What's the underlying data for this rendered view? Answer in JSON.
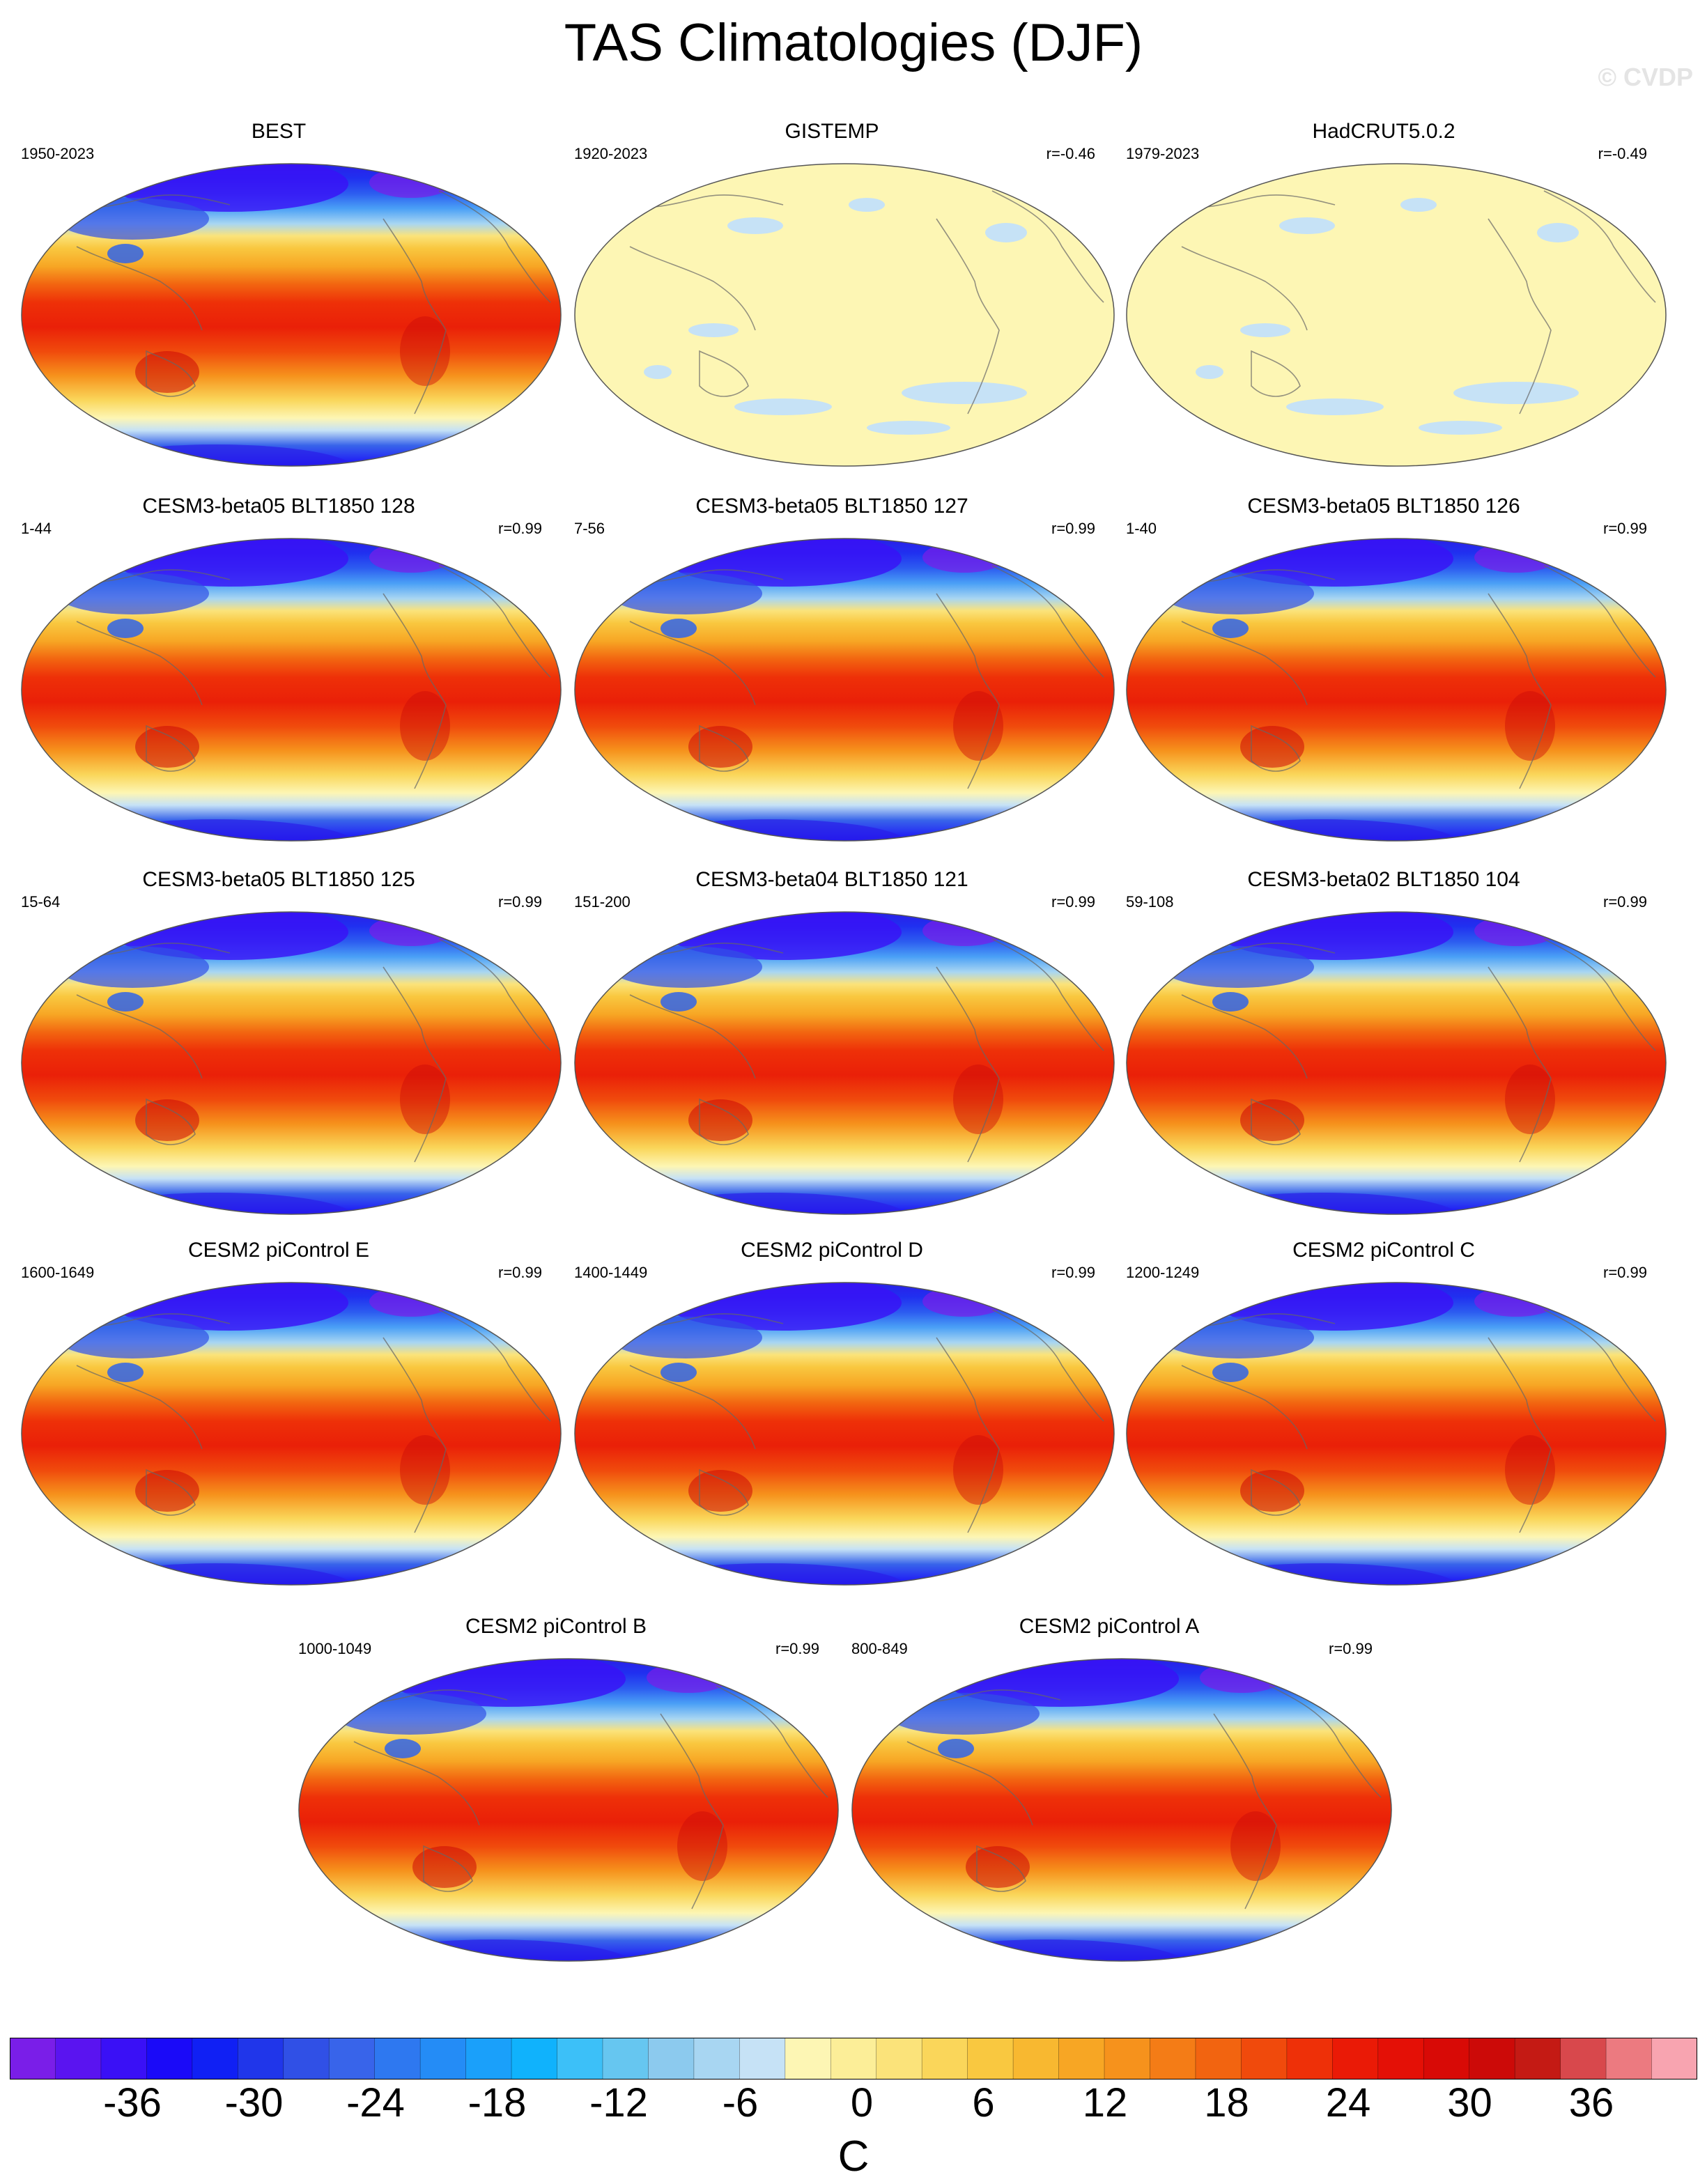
{
  "title": "TAS Climatologies (DJF)",
  "watermark": "© CVDP",
  "panels": [
    {
      "title": "BEST",
      "years": "1950-2023",
      "r": "",
      "style": "obs"
    },
    {
      "title": "GISTEMP",
      "years": "1920-2023",
      "r": "r=-0.46",
      "style": "pale"
    },
    {
      "title": "HadCRUT5.0.2",
      "years": "1979-2023",
      "r": "r=-0.49",
      "style": "pale"
    },
    {
      "title": "CESM3-beta05 BLT1850 128",
      "years": "1-44",
      "r": "r=0.99",
      "style": "model"
    },
    {
      "title": "CESM3-beta05 BLT1850 127",
      "years": "7-56",
      "r": "r=0.99",
      "style": "model"
    },
    {
      "title": "CESM3-beta05 BLT1850 126",
      "years": "1-40",
      "r": "r=0.99",
      "style": "model"
    },
    {
      "title": "CESM3-beta05 BLT1850 125",
      "years": "15-64",
      "r": "r=0.99",
      "style": "model"
    },
    {
      "title": "CESM3-beta04 BLT1850 121",
      "years": "151-200",
      "r": "r=0.99",
      "style": "model"
    },
    {
      "title": "CESM3-beta02 BLT1850 104",
      "years": "59-108",
      "r": "r=0.99",
      "style": "model"
    },
    {
      "title": "CESM2 piControl E",
      "years": "1600-1649",
      "r": "r=0.99",
      "style": "model"
    },
    {
      "title": "CESM2 piControl D",
      "years": "1400-1449",
      "r": "r=0.99",
      "style": "model"
    },
    {
      "title": "CESM2 piControl C",
      "years": "1200-1249",
      "r": "r=0.99",
      "style": "model"
    },
    {
      "title": "CESM2 piControl B",
      "years": "1000-1049",
      "r": "r=0.99",
      "style": "model"
    },
    {
      "title": "CESM2 piControl A",
      "years": "800-849",
      "r": "r=0.99",
      "style": "model"
    }
  ],
  "colorbar": {
    "unit": "C",
    "tick_labels": [
      "-36",
      "-30",
      "-24",
      "-18",
      "-12",
      "-6",
      "0",
      "6",
      "12",
      "18",
      "24",
      "30",
      "36"
    ],
    "colors": [
      "#7a1ee8",
      "#5a14f0",
      "#3a10f6",
      "#1a0af8",
      "#1020f4",
      "#2036ea",
      "#3050e6",
      "#3864ea",
      "#2e78f0",
      "#248cf6",
      "#1aa0fa",
      "#10b2fc",
      "#3cc0f8",
      "#66c6f0",
      "#8ccaee",
      "#a8d6f2",
      "#c6e2f6",
      "#fdf6b4",
      "#fcee98",
      "#fbe37a",
      "#fad65a",
      "#f9c840",
      "#f8b830",
      "#f7a624",
      "#f6921c",
      "#f47c16",
      "#f26410",
      "#f04a0c",
      "#ee3008",
      "#ea1a06",
      "#e41006",
      "#d80a06",
      "#cc0a08",
      "#c41a14",
      "#d8484c",
      "#ec7a80",
      "#f8a4b0"
    ]
  }
}
